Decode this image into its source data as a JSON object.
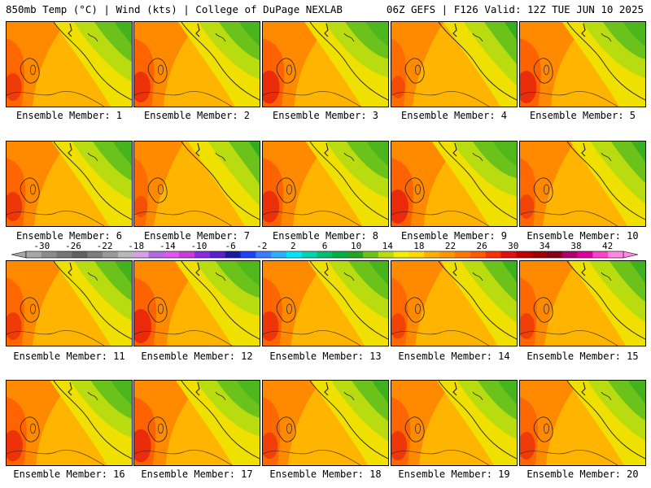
{
  "header": {
    "left": "850mb Temp (°C) | Wind (kts) | College of DuPage NEXLAB",
    "right": "06Z GEFS | F126 Valid: 12Z TUE JUN 10 2025"
  },
  "panels": [
    {
      "label": "Ensemble Member: 1",
      "warmth": 0.55
    },
    {
      "label": "Ensemble Member: 2",
      "warmth": 0.65
    },
    {
      "label": "Ensemble Member: 3",
      "warmth": 0.72
    },
    {
      "label": "Ensemble Member: 4",
      "warmth": 0.4
    },
    {
      "label": "Ensemble Member: 5",
      "warmth": 0.7
    },
    {
      "label": "Ensemble Member: 6",
      "warmth": 0.6
    },
    {
      "label": "Ensemble Member: 7",
      "warmth": 0.35
    },
    {
      "label": "Ensemble Member: 8",
      "warmth": 0.68
    },
    {
      "label": "Ensemble Member: 9",
      "warmth": 0.75
    },
    {
      "label": "Ensemble Member: 10",
      "warmth": 0.45
    },
    {
      "label": "Ensemble Member: 11",
      "warmth": 0.55
    },
    {
      "label": "Ensemble Member: 12",
      "warmth": 0.75
    },
    {
      "label": "Ensemble Member: 13",
      "warmth": 0.62
    },
    {
      "label": "Ensemble Member: 14",
      "warmth": 0.48
    },
    {
      "label": "Ensemble Member: 15",
      "warmth": 0.5
    },
    {
      "label": "Ensemble Member: 16",
      "warmth": 0.66
    },
    {
      "label": "Ensemble Member: 17",
      "warmth": 0.72
    },
    {
      "label": "Ensemble Member: 18",
      "warmth": 0.52
    },
    {
      "label": "Ensemble Member: 19",
      "warmth": 0.6
    },
    {
      "label": "Ensemble Member: 20",
      "warmth": 0.55
    }
  ],
  "colorbar": {
    "ticks": [
      "-30",
      "-26",
      "-22",
      "-18",
      "-14",
      "-10",
      "-6",
      "-2",
      "2",
      "6",
      "10",
      "14",
      "18",
      "22",
      "26",
      "30",
      "34",
      "38",
      "42"
    ],
    "colors": [
      "#a7a7a7",
      "#8c8c8c",
      "#767676",
      "#606060",
      "#7d7d7d",
      "#9a9a9a",
      "#b9b9b9",
      "#d2a3e6",
      "#b36ae0",
      "#e055f0",
      "#c83cd8",
      "#8a2be2",
      "#5a20d0",
      "#1a1aa0",
      "#2040ff",
      "#3a7cff",
      "#2ab0ff",
      "#00e5ff",
      "#00d5b0",
      "#00c070",
      "#00b040",
      "#22a522",
      "#6ac21a",
      "#b9dc10",
      "#f0f000",
      "#ffd800",
      "#ffb000",
      "#ff9600",
      "#ff7800",
      "#ff5a00",
      "#f83200",
      "#e01010",
      "#c00000",
      "#a00000",
      "#880018",
      "#b00070",
      "#e000a0",
      "#ff40c8",
      "#ff88e0"
    ]
  }
}
